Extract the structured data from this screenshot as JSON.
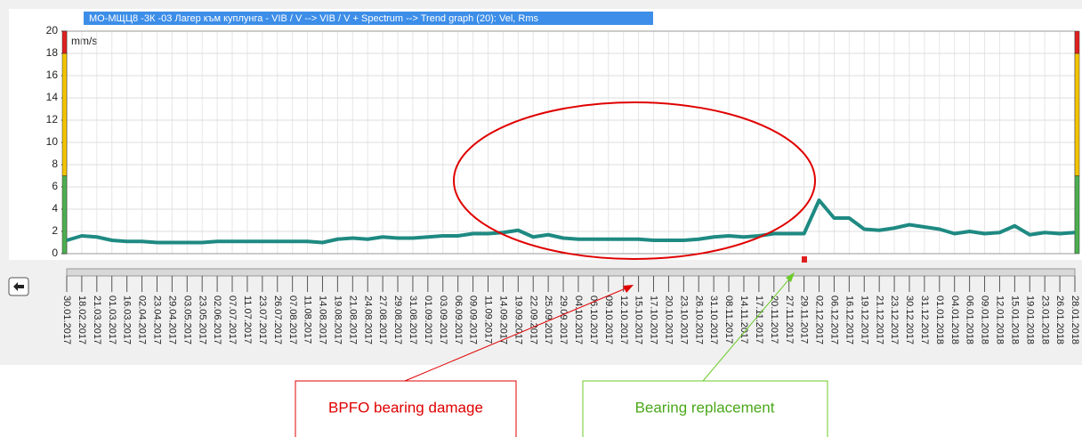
{
  "chart_data": {
    "type": "line",
    "title": "МО-МЩЦ8 -3К -03 Лагер към куплунга - VIB / V --> VIB / V + Spectrum --> Trend graph (20): Vel, Rms",
    "y_label": "mm/s",
    "categories": [
      "30.01.2017",
      "18.02.2017",
      "21.03.2017",
      "01.03.2017",
      "16.03.2017",
      "02.04.2017",
      "23.04.2017",
      "29.04.2017",
      "03.05.2017",
      "23.05.2017",
      "02.06.2017",
      "07.07.2017",
      "11.07.2017",
      "23.07.2017",
      "26.07.2017",
      "07.08.2017",
      "11.08.2017",
      "14.08.2017",
      "19.08.2017",
      "21.08.2017",
      "24.08.2017",
      "27.08.2017",
      "29.08.2017",
      "31.08.2017",
      "01.09.2017",
      "03.09.2017",
      "06.09.2017",
      "09.09.2017",
      "11.09.2017",
      "14.09.2017",
      "19.09.2017",
      "22.09.2017",
      "25.09.2017",
      "29.09.2017",
      "04.10.2017",
      "06.10.2017",
      "09.10.2017",
      "12.10.2017",
      "15.10.2017",
      "17.10.2017",
      "20.10.2017",
      "23.10.2017",
      "26.10.2017",
      "31.10.2017",
      "08.11.2017",
      "14.11.2017",
      "17.11.2017",
      "20.11.2017",
      "27.11.2017",
      "29.11.2017",
      "02.12.2017",
      "06.12.2017",
      "16.12.2017",
      "19.12.2017",
      "21.12.2017",
      "23.12.2017",
      "30.12.2017",
      "31.12.2017",
      "01.01.2018",
      "04.01.2018",
      "06.01.2018",
      "09.01.2018",
      "12.01.2018",
      "15.01.2018",
      "19.01.2018",
      "23.01.2018",
      "26.01.2018",
      "28.01.2018"
    ],
    "series": [
      {
        "name": "Vel, Rms",
        "color": "#1e8a82",
        "values": [
          1.2,
          1.6,
          1.5,
          1.2,
          1.1,
          1.1,
          1.0,
          1.0,
          1.0,
          1.0,
          1.1,
          1.1,
          1.1,
          1.1,
          1.1,
          1.1,
          1.1,
          1.0,
          1.3,
          1.4,
          1.3,
          1.5,
          1.4,
          1.4,
          1.5,
          1.6,
          1.6,
          1.8,
          1.8,
          1.9,
          2.1,
          1.5,
          1.7,
          1.4,
          1.3,
          1.3,
          1.3,
          1.3,
          1.3,
          1.2,
          1.2,
          1.2,
          1.3,
          1.5,
          1.6,
          1.5,
          1.6,
          1.8,
          1.8,
          1.8,
          4.8,
          3.2,
          3.2,
          2.2,
          2.1,
          2.3,
          2.6,
          2.4,
          2.2,
          1.8,
          2.0,
          1.8,
          1.9,
          2.5,
          1.7,
          1.9,
          1.8,
          1.9
        ]
      }
    ],
    "ylim": [
      0,
      20
    ],
    "yticks": [
      0,
      2,
      4,
      6,
      8,
      10,
      12,
      14,
      16,
      18,
      20
    ],
    "grid": true,
    "zones": [
      {
        "from": 0,
        "to": 7,
        "color": "#4caf50"
      },
      {
        "from": 7,
        "to": 18,
        "color": "#f5c400"
      },
      {
        "from": 18,
        "to": 20,
        "color": "#e02020"
      }
    ],
    "annotations": [
      "BPFO bearing damage",
      "Bearing replacement"
    ]
  }
}
